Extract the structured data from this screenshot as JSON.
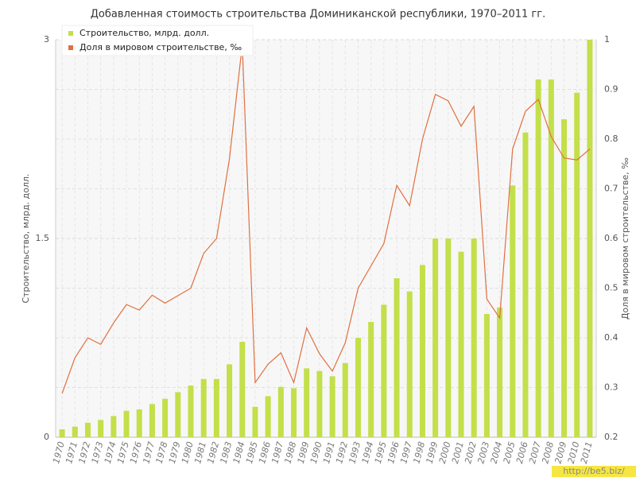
{
  "chart_data": {
    "type": "bar-line",
    "title": "Добавленная стоимость строительства Доминиканской республики, 1970–2011 гг.",
    "y_label": "Строительство, млрд. долл.",
    "y2_label": "Доля в мировом строительстве, ‰",
    "watermark": "http://be5.biz/",
    "categories": [
      "1970",
      "1971",
      "1972",
      "1973",
      "1974",
      "1975",
      "1976",
      "1977",
      "1978",
      "1979",
      "1980",
      "1981",
      "1982",
      "1983",
      "1984",
      "1985",
      "1986",
      "1987",
      "1988",
      "1989",
      "1990",
      "1991",
      "1992",
      "1993",
      "1994",
      "1995",
      "1996",
      "1997",
      "1998",
      "1999",
      "2000",
      "2001",
      "2002",
      "2003",
      "2004",
      "2005",
      "2006",
      "2007",
      "2008",
      "2009",
      "2010",
      "2011"
    ],
    "series": [
      {
        "name": "Строительство, млрд. долл.",
        "type": "bar",
        "color": "#c3df4a",
        "axis": "y",
        "values": [
          0.06,
          0.08,
          0.11,
          0.13,
          0.16,
          0.2,
          0.21,
          0.25,
          0.29,
          0.34,
          0.39,
          0.44,
          0.44,
          0.55,
          0.72,
          0.23,
          0.31,
          0.38,
          0.37,
          0.52,
          0.5,
          0.46,
          0.56,
          0.75,
          0.87,
          1.0,
          1.2,
          1.1,
          1.3,
          1.5,
          1.5,
          1.4,
          1.5,
          0.93,
          0.98,
          1.9,
          2.3,
          2.7,
          2.7,
          2.4,
          2.6,
          3.0
        ]
      },
      {
        "name": "Доля в мировом строительстве, ‰",
        "type": "line",
        "color": "#e07040",
        "axis": "y2",
        "values": [
          0.288,
          0.36,
          0.4,
          0.387,
          0.43,
          0.467,
          0.456,
          0.486,
          0.47,
          0.485,
          0.5,
          0.57,
          0.6,
          0.76,
          0.99,
          0.31,
          0.347,
          0.37,
          0.31,
          0.42,
          0.368,
          0.333,
          0.39,
          0.5,
          0.545,
          0.59,
          0.707,
          0.666,
          0.8,
          0.89,
          0.877,
          0.826,
          0.866,
          0.478,
          0.44,
          0.78,
          0.856,
          0.88,
          0.805,
          0.762,
          0.758,
          0.78
        ]
      }
    ],
    "ylim": [
      0,
      3
    ],
    "yticks": [
      0,
      1.5,
      3
    ],
    "y2lim": [
      0.2,
      1
    ],
    "y2ticks": [
      0.2,
      0.3,
      0.4,
      0.5,
      0.6,
      0.7,
      0.8,
      0.9,
      1
    ],
    "grid": true
  }
}
